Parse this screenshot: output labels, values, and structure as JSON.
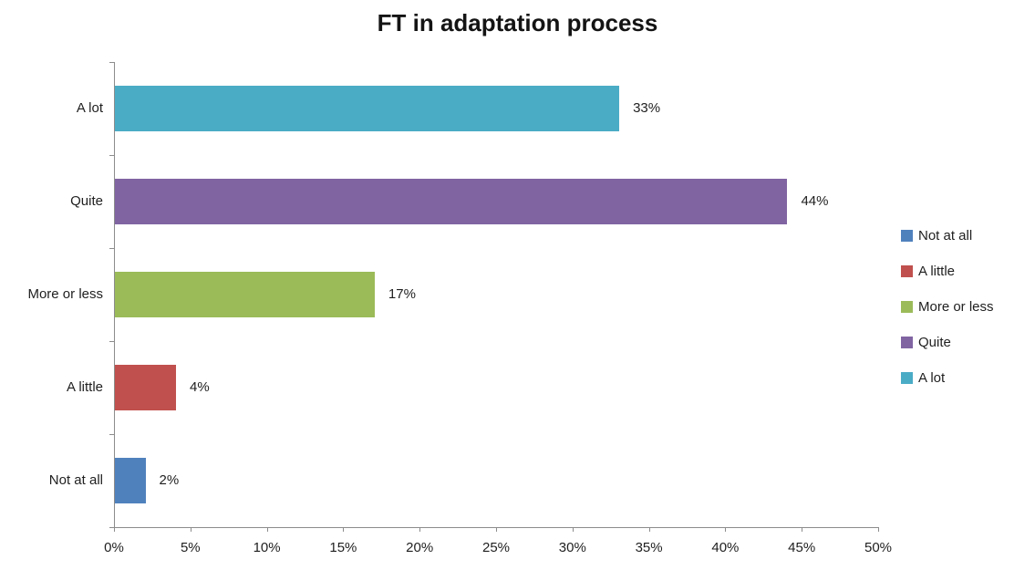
{
  "chart_data": {
    "type": "bar",
    "orientation": "horizontal",
    "title": "FT in adaptation process",
    "categories": [
      "A lot",
      "Quite",
      "More or less",
      "A little",
      "Not at all"
    ],
    "values": [
      33,
      44,
      17,
      4,
      2
    ],
    "value_labels": [
      "33%",
      "44%",
      "17%",
      "4%",
      "2%"
    ],
    "bar_colors": [
      "#4BACC6",
      "#8064A2",
      "#9BBB59",
      "#C0504D",
      "#4F81BD"
    ],
    "x_axis": {
      "min": 0,
      "max": 50,
      "step": 5,
      "tick_labels": [
        "0%",
        "5%",
        "10%",
        "15%",
        "20%",
        "25%",
        "30%",
        "35%",
        "40%",
        "45%",
        "50%"
      ]
    },
    "y_axis": {
      "tick_count": 6
    },
    "legend": {
      "position": "right",
      "items": [
        {
          "label": "Not at all",
          "color": "#4F81BD"
        },
        {
          "label": "A little",
          "color": "#C0504D"
        },
        {
          "label": "More or less",
          "color": "#9BBB59"
        },
        {
          "label": "Quite",
          "color": "#8064A2"
        },
        {
          "label": "A lot",
          "color": "#4BACC6"
        }
      ]
    },
    "grid": false,
    "colors": {
      "axis": "#8c8c8c",
      "text": "#1f1f1f",
      "background": "#ffffff"
    }
  }
}
